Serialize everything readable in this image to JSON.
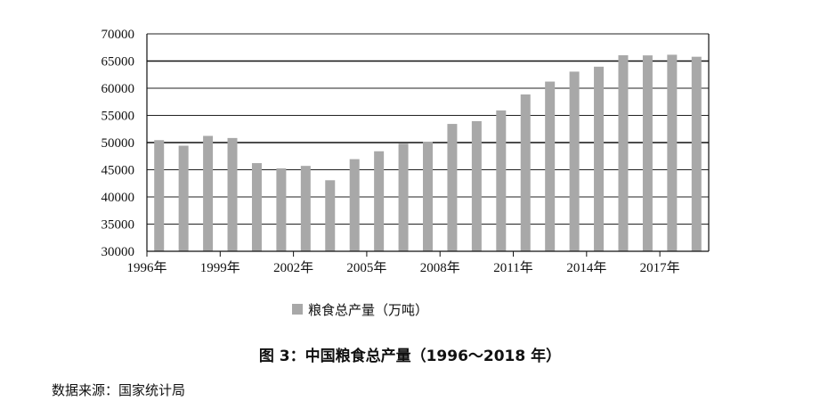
{
  "chart_data": {
    "type": "bar",
    "categories": [
      "1996年",
      "1997年",
      "1998年",
      "1999年",
      "2000年",
      "2001年",
      "2002年",
      "2003年",
      "2004年",
      "2005年",
      "2006年",
      "2007年",
      "2008年",
      "2009年",
      "2010年",
      "2011年",
      "2012年",
      "2013年",
      "2014年",
      "2015年",
      "2016年",
      "2017年",
      "2018年"
    ],
    "x_tick_labels": [
      "1996年",
      "1999年",
      "2002年",
      "2005年",
      "2008年",
      "2011年",
      "2014年",
      "2017年"
    ],
    "series": [
      {
        "name": "粮食总产量（万吨）",
        "values": [
          50450,
          49420,
          51230,
          50840,
          46220,
          45260,
          45710,
          43070,
          46950,
          48400,
          49800,
          50160,
          53430,
          53940,
          55910,
          58850,
          61220,
          63050,
          63960,
          66060,
          66040,
          66160,
          65790
        ]
      }
    ],
    "ylim": [
      30000,
      70000
    ],
    "y_ticks": [
      30000,
      35000,
      40000,
      45000,
      50000,
      55000,
      60000,
      65000,
      70000
    ],
    "bold_gridlines": [
      50000,
      65000
    ],
    "grid": true,
    "legend_position": "bottom-left",
    "bar_color": "#a8a8a8",
    "title": "图 3：中国粮食总产量（1996～2018 年）",
    "xlabel": "",
    "ylabel": ""
  },
  "source_note": "数据来源：国家统计局"
}
